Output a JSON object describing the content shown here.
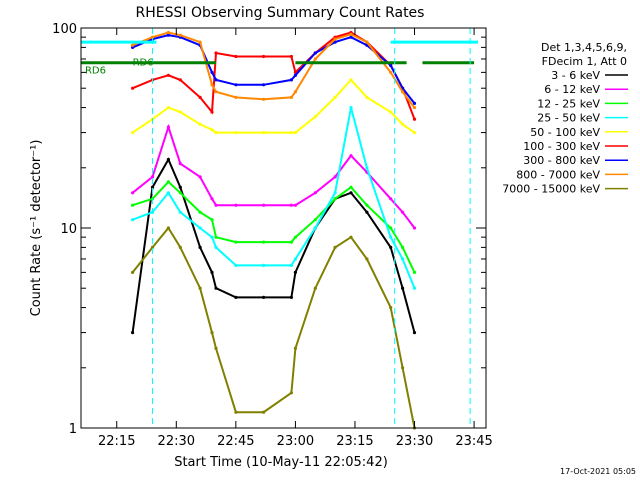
{
  "chart_data": {
    "type": "line",
    "title": "RHESSI Observing Summary Count Rates",
    "xlabel": "Start Time (10-May-11 22:05:42)",
    "ylabel": "Count Rate (s⁻¹ detector⁻¹)",
    "y_scale": "log",
    "ylim": [
      1,
      100
    ],
    "xlim": [
      "22:06",
      "23:48"
    ],
    "x_ticks": [
      "22:15",
      "22:30",
      "22:45",
      "23:00",
      "23:15",
      "23:30",
      "23:45"
    ],
    "y_ticks": [
      "1",
      "10",
      "100"
    ],
    "legend_header": [
      "Det 1,3,4,5,6,9,",
      "FDecim 1, Att 0"
    ],
    "legend_position": "right",
    "grid": false,
    "footer": "17-Oct-2021 05:05",
    "x": [
      "22:19",
      "22:24",
      "22:28",
      "22:31",
      "22:36",
      "22:39",
      "22:40",
      "22:45",
      "22:52",
      "22:59",
      "23:00",
      "23:05",
      "23:10",
      "23:14",
      "23:18",
      "23:24",
      "23:27",
      "23:30"
    ],
    "series": [
      {
        "name": "3 - 6 keV",
        "color": "#000000",
        "values": [
          3,
          16,
          22,
          16,
          8,
          6,
          5,
          4.5,
          4.5,
          4.5,
          6,
          10,
          14,
          15,
          12,
          8,
          5,
          3
        ]
      },
      {
        "name": "6 - 12 keV",
        "color": "#ff00ff",
        "values": [
          15,
          18,
          32,
          21,
          18,
          14,
          13,
          13,
          13,
          13,
          13,
          15,
          18,
          23,
          19,
          14,
          12,
          10
        ]
      },
      {
        "name": "12 - 25 keV",
        "color": "#00ff00",
        "values": [
          13,
          14,
          17,
          15,
          12,
          11,
          9,
          8.5,
          8.5,
          8.5,
          9,
          11,
          14,
          16,
          13,
          10,
          8,
          6
        ]
      },
      {
        "name": "25 - 50 keV",
        "color": "#00ffff",
        "values": [
          11,
          12,
          15,
          12,
          10,
          9,
          8,
          6.5,
          6.5,
          6.5,
          7,
          10,
          15,
          40,
          20,
          9,
          7,
          5
        ]
      },
      {
        "name": "50 - 100 keV",
        "color": "#ffff00",
        "values": [
          30,
          35,
          40,
          38,
          33,
          31,
          30,
          30,
          30,
          30,
          30,
          36,
          45,
          55,
          45,
          38,
          33,
          30
        ]
      },
      {
        "name": "100 - 300 keV",
        "color": "#ff0000",
        "values": [
          50,
          55,
          58,
          55,
          45,
          38,
          75,
          72,
          72,
          72,
          60,
          75,
          90,
          95,
          85,
          65,
          50,
          35
        ]
      },
      {
        "name": "300 - 800 keV",
        "color": "#0000ff",
        "values": [
          80,
          88,
          92,
          90,
          82,
          60,
          55,
          52,
          52,
          55,
          58,
          75,
          85,
          90,
          82,
          65,
          50,
          42
        ]
      },
      {
        "name": "800 - 7000 keV",
        "color": "#ff8800",
        "values": [
          82,
          90,
          95,
          92,
          85,
          52,
          48,
          45,
          44,
          45,
          48,
          70,
          88,
          93,
          85,
          60,
          48,
          40
        ]
      },
      {
        "name": "7000 - 15000 keV",
        "color": "#808000",
        "values": [
          6,
          8,
          10,
          8,
          5,
          3,
          2.5,
          1.2,
          1.2,
          1.5,
          2.5,
          5,
          8,
          9,
          7,
          4,
          2,
          1
        ]
      }
    ],
    "markers": {
      "hline_cyan": {
        "y": 85,
        "segments": [
          [
            "22:06",
            "22:25"
          ],
          [
            "23:24",
            "23:46"
          ]
        ]
      },
      "hline_green": {
        "y": 67,
        "segments": [
          [
            "22:06",
            "22:40"
          ],
          [
            "23:00",
            "23:28"
          ],
          [
            "23:32",
            "23:45"
          ]
        ]
      },
      "vlines_cyan_dashed": [
        "22:24",
        "23:25",
        "23:44"
      ],
      "labels": [
        {
          "text": "RD6",
          "x": "22:07",
          "y": 62
        },
        {
          "text": "RD6",
          "x": "22:19",
          "y": 68
        }
      ]
    }
  }
}
